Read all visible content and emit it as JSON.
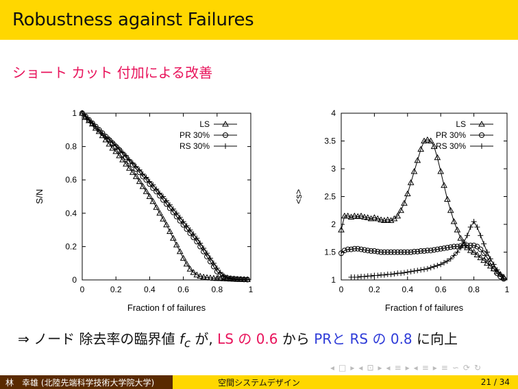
{
  "slide": {
    "title": "Robustness against Failures",
    "subtitle": "ショート カット 付加による改善",
    "footnote": {
      "prefix": "⇒ ノード 除去率の臨界値 ",
      "fc_var": "f",
      "fc_sub": "c",
      "mid1": " が, ",
      "ls_text": "LS の 0.6",
      "mid2": " から ",
      "pr_text": "PRと RS の 0.8",
      "suffix": " に向上"
    },
    "footer": {
      "author": "林　幸雄 (北陸先端科学技術大学院大学)",
      "talk": "空間システムデザイン",
      "page": "21 / 34"
    },
    "nav_icons": [
      "◂",
      "□",
      "▸",
      "◂",
      "⊡",
      "▸",
      "◂",
      "≡",
      "▸",
      "◂",
      "≡",
      "▸",
      "≡",
      "∽",
      "⟳",
      "↻"
    ],
    "colors": {
      "accent": "#e8135b",
      "secondary": "#2e3bd8",
      "bar": "#ffd700",
      "dark": "#5a2a00"
    }
  },
  "chart_data": [
    {
      "type": "line",
      "xlabel": "Fraction f of failures",
      "ylabel": "S/N",
      "xlim": [
        0,
        1
      ],
      "ylim": [
        0,
        1
      ],
      "xticks": [
        "0",
        "0.2",
        "0.4",
        "0.6",
        "0.8",
        "1"
      ],
      "yticks": [
        "0",
        "0.2",
        "0.4",
        "0.6",
        "0.8",
        "1"
      ],
      "legend_position": "top-right",
      "series": [
        {
          "name": "LS",
          "marker": "triangle",
          "x": [
            0,
            0.02,
            0.04,
            0.06,
            0.08,
            0.1,
            0.12,
            0.14,
            0.16,
            0.18,
            0.2,
            0.22,
            0.24,
            0.26,
            0.28,
            0.3,
            0.32,
            0.34,
            0.36,
            0.38,
            0.4,
            0.42,
            0.44,
            0.46,
            0.48,
            0.5,
            0.52,
            0.54,
            0.56,
            0.58,
            0.6,
            0.62,
            0.64,
            0.66,
            0.68,
            0.7,
            0.72,
            0.74,
            0.76,
            0.78,
            0.8,
            0.82,
            0.84,
            0.86,
            0.88,
            0.9,
            0.92,
            0.94,
            0.96,
            0.98
          ],
          "y": [
            1,
            0.975,
            0.955,
            0.935,
            0.91,
            0.89,
            0.865,
            0.84,
            0.815,
            0.79,
            0.77,
            0.745,
            0.72,
            0.695,
            0.67,
            0.645,
            0.62,
            0.59,
            0.56,
            0.53,
            0.5,
            0.47,
            0.435,
            0.4,
            0.365,
            0.33,
            0.29,
            0.25,
            0.21,
            0.17,
            0.13,
            0.095,
            0.065,
            0.045,
            0.03,
            0.022,
            0.017,
            0.014,
            0.012,
            0.01,
            0.009,
            0.008,
            0.007,
            0.006,
            0.005,
            0.004,
            0.003,
            0.003,
            0.002,
            0.002
          ]
        },
        {
          "name": "PR 30%",
          "marker": "circle",
          "x": [
            0,
            0.02,
            0.04,
            0.06,
            0.08,
            0.1,
            0.12,
            0.14,
            0.16,
            0.18,
            0.2,
            0.22,
            0.24,
            0.26,
            0.28,
            0.3,
            0.32,
            0.34,
            0.36,
            0.38,
            0.4,
            0.42,
            0.44,
            0.46,
            0.48,
            0.5,
            0.52,
            0.54,
            0.56,
            0.58,
            0.6,
            0.62,
            0.64,
            0.66,
            0.68,
            0.7,
            0.72,
            0.74,
            0.76,
            0.78,
            0.8,
            0.82,
            0.84,
            0.86,
            0.88,
            0.9,
            0.92,
            0.94,
            0.96,
            0.98
          ],
          "y": [
            1,
            0.98,
            0.96,
            0.94,
            0.92,
            0.9,
            0.88,
            0.86,
            0.84,
            0.82,
            0.8,
            0.78,
            0.755,
            0.735,
            0.71,
            0.69,
            0.665,
            0.645,
            0.62,
            0.6,
            0.575,
            0.55,
            0.53,
            0.505,
            0.48,
            0.455,
            0.43,
            0.405,
            0.38,
            0.355,
            0.33,
            0.305,
            0.28,
            0.255,
            0.23,
            0.2,
            0.17,
            0.14,
            0.11,
            0.08,
            0.05,
            0.03,
            0.018,
            0.012,
            0.009,
            0.007,
            0.005,
            0.004,
            0.003,
            0.002
          ]
        },
        {
          "name": "RS 30%",
          "marker": "plus",
          "x": [
            0,
            0.02,
            0.04,
            0.06,
            0.08,
            0.1,
            0.12,
            0.14,
            0.16,
            0.18,
            0.2,
            0.22,
            0.24,
            0.26,
            0.28,
            0.3,
            0.32,
            0.34,
            0.36,
            0.38,
            0.4,
            0.42,
            0.44,
            0.46,
            0.48,
            0.5,
            0.52,
            0.54,
            0.56,
            0.58,
            0.6,
            0.62,
            0.64,
            0.66,
            0.68,
            0.7,
            0.72,
            0.74,
            0.76,
            0.78,
            0.8,
            0.82,
            0.84,
            0.86,
            0.88,
            0.9,
            0.92,
            0.94,
            0.96,
            0.98
          ],
          "y": [
            1,
            0.98,
            0.96,
            0.94,
            0.92,
            0.9,
            0.88,
            0.86,
            0.845,
            0.825,
            0.805,
            0.785,
            0.765,
            0.745,
            0.72,
            0.7,
            0.68,
            0.66,
            0.635,
            0.615,
            0.59,
            0.57,
            0.545,
            0.52,
            0.5,
            0.475,
            0.45,
            0.425,
            0.4,
            0.375,
            0.35,
            0.325,
            0.3,
            0.275,
            0.25,
            0.22,
            0.19,
            0.16,
            0.13,
            0.1,
            0.07,
            0.045,
            0.025,
            0.015,
            0.01,
            0.007,
            0.005,
            0.004,
            0.003,
            0.002
          ]
        }
      ]
    },
    {
      "type": "line",
      "xlabel": "Fraction f of failures",
      "ylabel": "<s>",
      "xlim": [
        0,
        1
      ],
      "ylim": [
        1,
        4
      ],
      "xticks": [
        "0",
        "0.2",
        "0.4",
        "0.6",
        "0.8",
        "1"
      ],
      "yticks": [
        "1",
        "1.5",
        "2",
        "2.5",
        "3",
        "3.5",
        "4"
      ],
      "legend_position": "top-right",
      "series": [
        {
          "name": "LS",
          "marker": "triangle",
          "x": [
            0,
            0.02,
            0.04,
            0.06,
            0.08,
            0.1,
            0.12,
            0.14,
            0.16,
            0.18,
            0.2,
            0.22,
            0.24,
            0.26,
            0.28,
            0.3,
            0.32,
            0.34,
            0.36,
            0.38,
            0.4,
            0.42,
            0.44,
            0.46,
            0.48,
            0.5,
            0.52,
            0.54,
            0.56,
            0.58,
            0.6,
            0.62,
            0.64,
            0.66,
            0.68,
            0.7,
            0.72,
            0.74,
            0.76,
            0.78,
            0.8,
            0.82,
            0.84,
            0.86,
            0.88,
            0.9,
            0.92,
            0.94,
            0.96,
            0.98
          ],
          "y": [
            1.9,
            2.15,
            2.15,
            2.13,
            2.15,
            2.14,
            2.15,
            2.13,
            2.12,
            2.1,
            2.12,
            2.1,
            2.08,
            2.07,
            2.08,
            2.07,
            2.1,
            2.15,
            2.25,
            2.38,
            2.55,
            2.75,
            2.95,
            3.15,
            3.35,
            3.5,
            3.52,
            3.5,
            3.4,
            3.2,
            2.95,
            2.7,
            2.45,
            2.25,
            2.05,
            1.9,
            1.75,
            1.65,
            1.58,
            1.53,
            1.5,
            1.45,
            1.4,
            1.35,
            1.3,
            1.25,
            1.2,
            1.15,
            1.1,
            1.05
          ]
        },
        {
          "name": "PR 30%",
          "marker": "circle",
          "x": [
            0,
            0.02,
            0.04,
            0.06,
            0.08,
            0.1,
            0.12,
            0.14,
            0.16,
            0.18,
            0.2,
            0.22,
            0.24,
            0.26,
            0.28,
            0.3,
            0.32,
            0.34,
            0.36,
            0.38,
            0.4,
            0.42,
            0.44,
            0.46,
            0.48,
            0.5,
            0.52,
            0.54,
            0.56,
            0.58,
            0.6,
            0.62,
            0.64,
            0.66,
            0.68,
            0.7,
            0.72,
            0.74,
            0.76,
            0.78,
            0.8,
            0.82,
            0.84,
            0.86,
            0.88,
            0.9,
            0.92,
            0.94,
            0.96,
            0.98
          ],
          "y": [
            1.48,
            1.53,
            1.55,
            1.55,
            1.56,
            1.56,
            1.55,
            1.54,
            1.53,
            1.52,
            1.52,
            1.51,
            1.5,
            1.5,
            1.5,
            1.5,
            1.5,
            1.5,
            1.5,
            1.5,
            1.5,
            1.5,
            1.51,
            1.51,
            1.52,
            1.52,
            1.53,
            1.53,
            1.54,
            1.55,
            1.56,
            1.57,
            1.58,
            1.59,
            1.6,
            1.6,
            1.61,
            1.62,
            1.62,
            1.62,
            1.62,
            1.6,
            1.55,
            1.48,
            1.4,
            1.3,
            1.2,
            1.12,
            1.06,
            1.02
          ]
        },
        {
          "name": "RS 30%",
          "marker": "plus",
          "x": [
            0.06,
            0.08,
            0.1,
            0.12,
            0.14,
            0.16,
            0.18,
            0.2,
            0.22,
            0.24,
            0.26,
            0.28,
            0.3,
            0.32,
            0.34,
            0.36,
            0.38,
            0.4,
            0.42,
            0.44,
            0.46,
            0.48,
            0.5,
            0.52,
            0.54,
            0.56,
            0.58,
            0.6,
            0.62,
            0.64,
            0.66,
            0.68,
            0.7,
            0.72,
            0.74,
            0.76,
            0.78,
            0.8,
            0.82,
            0.84,
            0.86,
            0.88,
            0.9,
            0.92,
            0.94,
            0.96,
            0.98
          ],
          "y": [
            1.05,
            1.05,
            1.05,
            1.06,
            1.06,
            1.07,
            1.07,
            1.08,
            1.08,
            1.09,
            1.09,
            1.1,
            1.1,
            1.11,
            1.12,
            1.12,
            1.13,
            1.14,
            1.15,
            1.16,
            1.17,
            1.18,
            1.19,
            1.2,
            1.22,
            1.24,
            1.26,
            1.28,
            1.31,
            1.34,
            1.38,
            1.44,
            1.5,
            1.58,
            1.68,
            1.8,
            1.95,
            2.05,
            1.95,
            1.8,
            1.65,
            1.5,
            1.38,
            1.28,
            1.18,
            1.1,
            1.03
          ]
        }
      ]
    }
  ]
}
